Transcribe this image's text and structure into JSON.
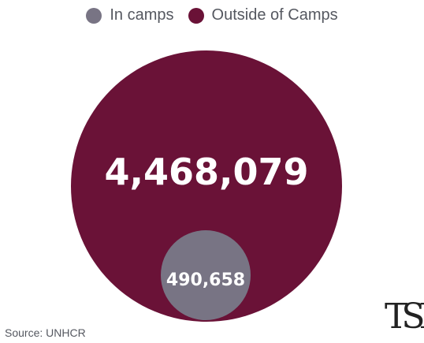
{
  "legend": {
    "items": [
      {
        "label": "In camps",
        "color": "#787484"
      },
      {
        "label": "Outside of Camps",
        "color": "#6a1237"
      }
    ]
  },
  "source": "Source: UNHCR",
  "logo": "TSD",
  "chart_data": {
    "type": "bubble",
    "title": "",
    "legend_position": "top-center",
    "series": [
      {
        "name": "Outside of Camps",
        "value": 4468079,
        "label": "4,468,079",
        "color": "#6a1237"
      },
      {
        "name": "In camps",
        "value": 490658,
        "label": "490,658",
        "color": "#787484"
      }
    ]
  }
}
